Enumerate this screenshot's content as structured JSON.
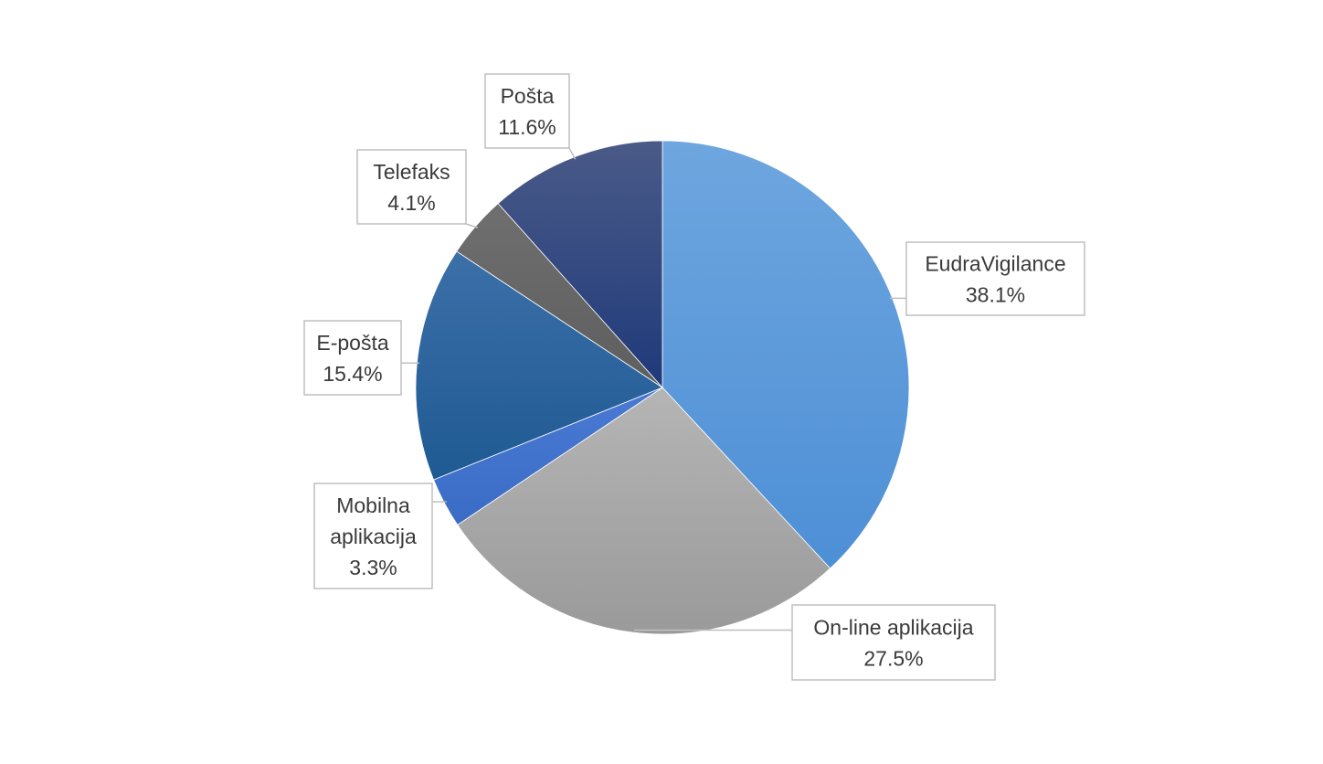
{
  "chart_data": {
    "type": "pie",
    "title": "",
    "start_angle_deg": 0,
    "direction": "clockwise",
    "legend": "none",
    "slices": [
      {
        "label": "EudraVigilance",
        "value": 38.1,
        "label_text": "38.1%",
        "color": "#4d8fd6",
        "color_light": "#6ea6df"
      },
      {
        "label": "On-line aplikacija",
        "value": 27.5,
        "label_text": "27.5%",
        "color": "#9a9a9a",
        "color_light": "#b5b5b5"
      },
      {
        "label": "Mobilna aplikacija",
        "value": 3.3,
        "label_text": "3.3%",
        "color": "#3a6cc6",
        "color_light": "#4a7ad3"
      },
      {
        "label": "E-pošta",
        "value": 15.4,
        "label_text": "15.4%",
        "color": "#1f5a93",
        "color_light": "#3c6fa8"
      },
      {
        "label": "Telefaks",
        "value": 4.1,
        "label_text": "4.1%",
        "color": "#5e5e5e",
        "color_light": "#6f6f6f"
      },
      {
        "label": "Pošta",
        "value": 11.6,
        "label_text": "11.6%",
        "color": "#1f3a7a",
        "color_light": "#4a5a88"
      }
    ]
  }
}
